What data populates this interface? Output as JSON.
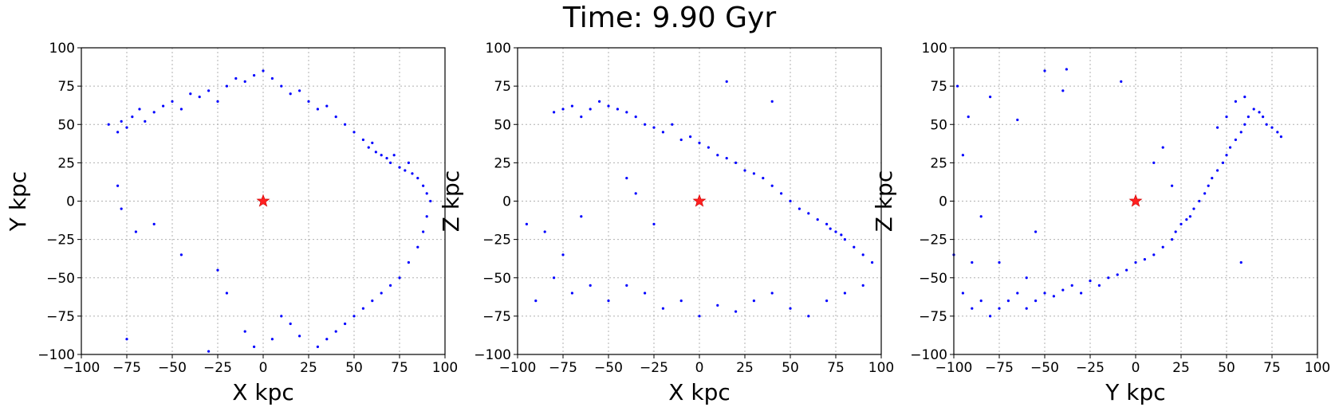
{
  "figure": {
    "title": "Time: 9.90 Gyr"
  },
  "colors": {
    "points": "#0000ff",
    "star": "#ff2020",
    "grid": "#b0b0b0",
    "axis": "#000000"
  },
  "chart_data": [
    {
      "type": "scatter",
      "title": "",
      "xlabel": "X kpc",
      "ylabel": "Y kpc",
      "xlim": [
        -100,
        100
      ],
      "ylim": [
        -100,
        100
      ],
      "xticks": [
        -100,
        -75,
        -50,
        -25,
        0,
        25,
        50,
        75,
        100
      ],
      "yticks": [
        -100,
        -75,
        -50,
        -25,
        0,
        25,
        50,
        75,
        100
      ],
      "grid": true,
      "marker_center": [
        0,
        0
      ],
      "points": [
        [
          -85,
          50
        ],
        [
          -80,
          45
        ],
        [
          -78,
          52
        ],
        [
          -75,
          48
        ],
        [
          -72,
          55
        ],
        [
          -68,
          60
        ],
        [
          -65,
          52
        ],
        [
          -60,
          58
        ],
        [
          -55,
          62
        ],
        [
          -50,
          65
        ],
        [
          -45,
          60
        ],
        [
          -40,
          70
        ],
        [
          -35,
          68
        ],
        [
          -30,
          72
        ],
        [
          -25,
          65
        ],
        [
          -20,
          75
        ],
        [
          -15,
          80
        ],
        [
          -10,
          78
        ],
        [
          -5,
          82
        ],
        [
          0,
          85
        ],
        [
          5,
          80
        ],
        [
          10,
          75
        ],
        [
          15,
          70
        ],
        [
          20,
          72
        ],
        [
          25,
          65
        ],
        [
          30,
          60
        ],
        [
          35,
          62
        ],
        [
          40,
          55
        ],
        [
          45,
          50
        ],
        [
          50,
          45
        ],
        [
          55,
          40
        ],
        [
          58,
          35
        ],
        [
          60,
          38
        ],
        [
          62,
          32
        ],
        [
          65,
          30
        ],
        [
          68,
          28
        ],
        [
          70,
          25
        ],
        [
          72,
          30
        ],
        [
          75,
          22
        ],
        [
          78,
          20
        ],
        [
          80,
          25
        ],
        [
          82,
          18
        ],
        [
          85,
          15
        ],
        [
          88,
          10
        ],
        [
          90,
          5
        ],
        [
          92,
          0
        ],
        [
          90,
          -10
        ],
        [
          88,
          -20
        ],
        [
          85,
          -30
        ],
        [
          80,
          -40
        ],
        [
          75,
          -50
        ],
        [
          70,
          -55
        ],
        [
          65,
          -60
        ],
        [
          60,
          -65
        ],
        [
          55,
          -70
        ],
        [
          50,
          -75
        ],
        [
          45,
          -80
        ],
        [
          40,
          -85
        ],
        [
          35,
          -90
        ],
        [
          30,
          -95
        ],
        [
          20,
          -88
        ],
        [
          15,
          -80
        ],
        [
          10,
          -75
        ],
        [
          5,
          -90
        ],
        [
          -5,
          -95
        ],
        [
          -10,
          -85
        ],
        [
          -20,
          -60
        ],
        [
          -30,
          -98
        ],
        [
          -45,
          -35
        ],
        [
          -25,
          -45
        ],
        [
          -80,
          10
        ],
        [
          -78,
          -5
        ],
        [
          -70,
          -20
        ],
        [
          -60,
          -15
        ],
        [
          -75,
          -90
        ]
      ],
      "star": [
        0,
        0
      ]
    },
    {
      "type": "scatter",
      "title": "",
      "xlabel": "X kpc",
      "ylabel": "Z kpc",
      "xlim": [
        -100,
        100
      ],
      "ylim": [
        -100,
        100
      ],
      "xticks": [
        -100,
        -75,
        -50,
        -25,
        0,
        25,
        50,
        75,
        100
      ],
      "yticks": [
        -100,
        -75,
        -50,
        -25,
        0,
        25,
        50,
        75,
        100
      ],
      "grid": true,
      "points": [
        [
          -80,
          58
        ],
        [
          -75,
          60
        ],
        [
          -70,
          62
        ],
        [
          -65,
          55
        ],
        [
          -60,
          60
        ],
        [
          -55,
          65
        ],
        [
          -50,
          62
        ],
        [
          -45,
          60
        ],
        [
          -40,
          58
        ],
        [
          -35,
          55
        ],
        [
          -30,
          50
        ],
        [
          -25,
          48
        ],
        [
          -20,
          45
        ],
        [
          -15,
          50
        ],
        [
          -10,
          40
        ],
        [
          -5,
          42
        ],
        [
          0,
          38
        ],
        [
          5,
          35
        ],
        [
          10,
          30
        ],
        [
          15,
          28
        ],
        [
          20,
          25
        ],
        [
          25,
          20
        ],
        [
          30,
          18
        ],
        [
          35,
          15
        ],
        [
          40,
          10
        ],
        [
          45,
          5
        ],
        [
          50,
          0
        ],
        [
          55,
          -5
        ],
        [
          60,
          -8
        ],
        [
          65,
          -12
        ],
        [
          70,
          -15
        ],
        [
          72,
          -18
        ],
        [
          75,
          -20
        ],
        [
          78,
          -22
        ],
        [
          80,
          -25
        ],
        [
          85,
          -30
        ],
        [
          90,
          -35
        ],
        [
          95,
          -40
        ],
        [
          -85,
          -20
        ],
        [
          -80,
          -50
        ],
        [
          -70,
          -60
        ],
        [
          -60,
          -55
        ],
        [
          -50,
          -65
        ],
        [
          -40,
          -55
        ],
        [
          -30,
          -60
        ],
        [
          -20,
          -70
        ],
        [
          -10,
          -65
        ],
        [
          0,
          -75
        ],
        [
          10,
          -68
        ],
        [
          20,
          -72
        ],
        [
          30,
          -65
        ],
        [
          40,
          -60
        ],
        [
          50,
          -70
        ],
        [
          60,
          -75
        ],
        [
          70,
          -65
        ],
        [
          80,
          -60
        ],
        [
          90,
          -55
        ],
        [
          -90,
          -65
        ],
        [
          -75,
          -35
        ],
        [
          -65,
          -10
        ],
        [
          -40,
          15
        ],
        [
          -35,
          5
        ],
        [
          -25,
          -15
        ],
        [
          15,
          78
        ],
        [
          40,
          65
        ],
        [
          -95,
          -15
        ]
      ],
      "star": [
        0,
        0
      ]
    },
    {
      "type": "scatter",
      "title": "",
      "xlabel": "Y kpc",
      "ylabel": "Z kpc",
      "xlim": [
        -100,
        100
      ],
      "ylim": [
        -100,
        100
      ],
      "xticks": [
        -100,
        -75,
        -50,
        -25,
        0,
        25,
        50,
        75,
        100
      ],
      "yticks": [
        -100,
        -75,
        -50,
        -25,
        0,
        25,
        50,
        75,
        100
      ],
      "grid": true,
      "points": [
        [
          -95,
          -60
        ],
        [
          -90,
          -70
        ],
        [
          -85,
          -65
        ],
        [
          -80,
          -75
        ],
        [
          -75,
          -70
        ],
        [
          -70,
          -65
        ],
        [
          -65,
          -60
        ],
        [
          -60,
          -70
        ],
        [
          -55,
          -65
        ],
        [
          -50,
          -60
        ],
        [
          -45,
          -62
        ],
        [
          -40,
          -58
        ],
        [
          -35,
          -55
        ],
        [
          -30,
          -60
        ],
        [
          -25,
          -52
        ],
        [
          -20,
          -55
        ],
        [
          -15,
          -50
        ],
        [
          -10,
          -48
        ],
        [
          -5,
          -45
        ],
        [
          0,
          -40
        ],
        [
          5,
          -38
        ],
        [
          10,
          -35
        ],
        [
          15,
          -30
        ],
        [
          20,
          -25
        ],
        [
          22,
          -20
        ],
        [
          25,
          -15
        ],
        [
          28,
          -12
        ],
        [
          30,
          -10
        ],
        [
          32,
          -5
        ],
        [
          35,
          0
        ],
        [
          38,
          5
        ],
        [
          40,
          10
        ],
        [
          42,
          15
        ],
        [
          45,
          20
        ],
        [
          48,
          25
        ],
        [
          50,
          30
        ],
        [
          52,
          35
        ],
        [
          55,
          40
        ],
        [
          58,
          45
        ],
        [
          60,
          50
        ],
        [
          62,
          55
        ],
        [
          65,
          60
        ],
        [
          68,
          58
        ],
        [
          70,
          55
        ],
        [
          72,
          50
        ],
        [
          75,
          48
        ],
        [
          78,
          45
        ],
        [
          80,
          42
        ],
        [
          55,
          65
        ],
        [
          60,
          68
        ],
        [
          50,
          55
        ],
        [
          45,
          48
        ],
        [
          -98,
          75
        ],
        [
          -92,
          55
        ],
        [
          -80,
          68
        ],
        [
          -65,
          53
        ],
        [
          -50,
          85
        ],
        [
          -40,
          72
        ],
        [
          -38,
          86
        ],
        [
          -8,
          78
        ],
        [
          -100,
          -35
        ],
        [
          -90,
          -40
        ],
        [
          -75,
          -40
        ],
        [
          -55,
          -20
        ],
        [
          -60,
          -50
        ],
        [
          10,
          25
        ],
        [
          20,
          10
        ],
        [
          15,
          35
        ],
        [
          58,
          -40
        ],
        [
          -95,
          30
        ],
        [
          -85,
          -10
        ]
      ],
      "star": [
        0,
        0
      ]
    }
  ]
}
